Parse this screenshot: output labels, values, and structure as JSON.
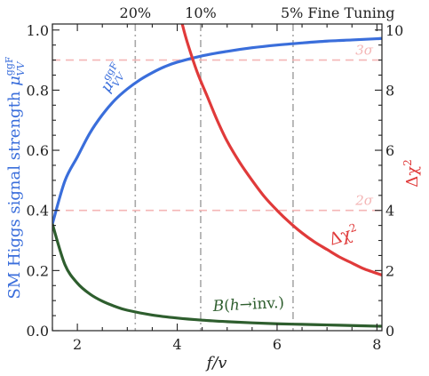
{
  "chart_data": {
    "type": "line",
    "title": "",
    "xlabel": "f/v",
    "ylabel_left": "SM Higgs signal strength μ_VV^ggF",
    "ylabel_right": "Δχ²",
    "xlim": [
      1.5,
      8.1
    ],
    "ylim_left": [
      0.0,
      1.02
    ],
    "ylim_right": [
      0.0,
      10.2
    ],
    "x_ticks": [
      2,
      4,
      6,
      8
    ],
    "y_ticks_left": [
      0.0,
      0.2,
      0.4,
      0.6,
      0.8,
      1.0
    ],
    "y_ticks_right": [
      0,
      2,
      4,
      6,
      8,
      10
    ],
    "x_tick_labels": [
      "2",
      "4",
      "6",
      "8"
    ],
    "y_tick_labels_left": [
      "0.0",
      "0.2",
      "0.4",
      "0.6",
      "0.8",
      "1.0"
    ],
    "y_tick_labels_right": [
      "0",
      "2",
      "4",
      "6",
      "8",
      "10"
    ],
    "grid": false,
    "colors": {
      "mu": "#3a6edb",
      "chi2": "#e03a3a",
      "br_inv": "#2e5e2e",
      "sigma_line": "#f4b6b6",
      "fine_tuning_line": "#a8a8a8",
      "left_axis_label": "#3a6edb",
      "right_axis_label": "#e03a3a"
    },
    "series": [
      {
        "key": "mu",
        "label": "μ_VV^ggF",
        "axis": "left",
        "x": [
          1.5,
          1.75,
          2.0,
          2.25,
          2.5,
          2.75,
          3.0,
          3.25,
          3.5,
          3.75,
          4.0,
          4.5,
          5.0,
          5.5,
          6.0,
          6.5,
          7.0,
          7.5,
          8.0,
          8.1
        ],
        "y": [
          0.355,
          0.498,
          0.578,
          0.657,
          0.718,
          0.767,
          0.804,
          0.834,
          0.858,
          0.878,
          0.893,
          0.914,
          0.929,
          0.941,
          0.95,
          0.957,
          0.963,
          0.967,
          0.971,
          0.972
        ]
      },
      {
        "key": "chi2",
        "label": "Δχ²",
        "axis": "right",
        "x": [
          4.1,
          4.2,
          4.4,
          4.6,
          4.8,
          5.0,
          5.25,
          5.5,
          5.75,
          6.0,
          6.25,
          6.5,
          6.75,
          7.0,
          7.25,
          7.5,
          7.75,
          8.1
        ],
        "y": [
          10.2,
          9.6,
          8.6,
          7.8,
          7.0,
          6.3,
          5.6,
          5.0,
          4.45,
          4.0,
          3.6,
          3.25,
          2.95,
          2.7,
          2.45,
          2.25,
          2.05,
          1.85
        ]
      },
      {
        "key": "br_inv",
        "label": "B(h→inv.)",
        "axis": "left",
        "x": [
          1.5,
          1.75,
          2.0,
          2.25,
          2.5,
          2.75,
          3.0,
          3.5,
          4.0,
          4.5,
          5.0,
          5.5,
          6.0,
          6.5,
          7.0,
          7.5,
          8.0,
          8.1
        ],
        "y": [
          0.355,
          0.22,
          0.158,
          0.122,
          0.098,
          0.081,
          0.068,
          0.052,
          0.042,
          0.035,
          0.03,
          0.026,
          0.023,
          0.021,
          0.019,
          0.017,
          0.015,
          0.015
        ]
      }
    ],
    "sigma_lines": [
      {
        "label": "3σ",
        "y_right": 9.0
      },
      {
        "label": "2σ",
        "y_right": 4.0
      }
    ],
    "fine_tuning_lines": [
      {
        "label": "20%",
        "x": 3.16
      },
      {
        "label": "10%",
        "x": 4.47
      },
      {
        "label": "5% Fine Tuning",
        "x": 6.32
      }
    ],
    "annotations": {
      "mu_label": "μ_VV^ggF",
      "chi2_label": "Δχ²",
      "br_label": "B(h→inv.)"
    }
  }
}
